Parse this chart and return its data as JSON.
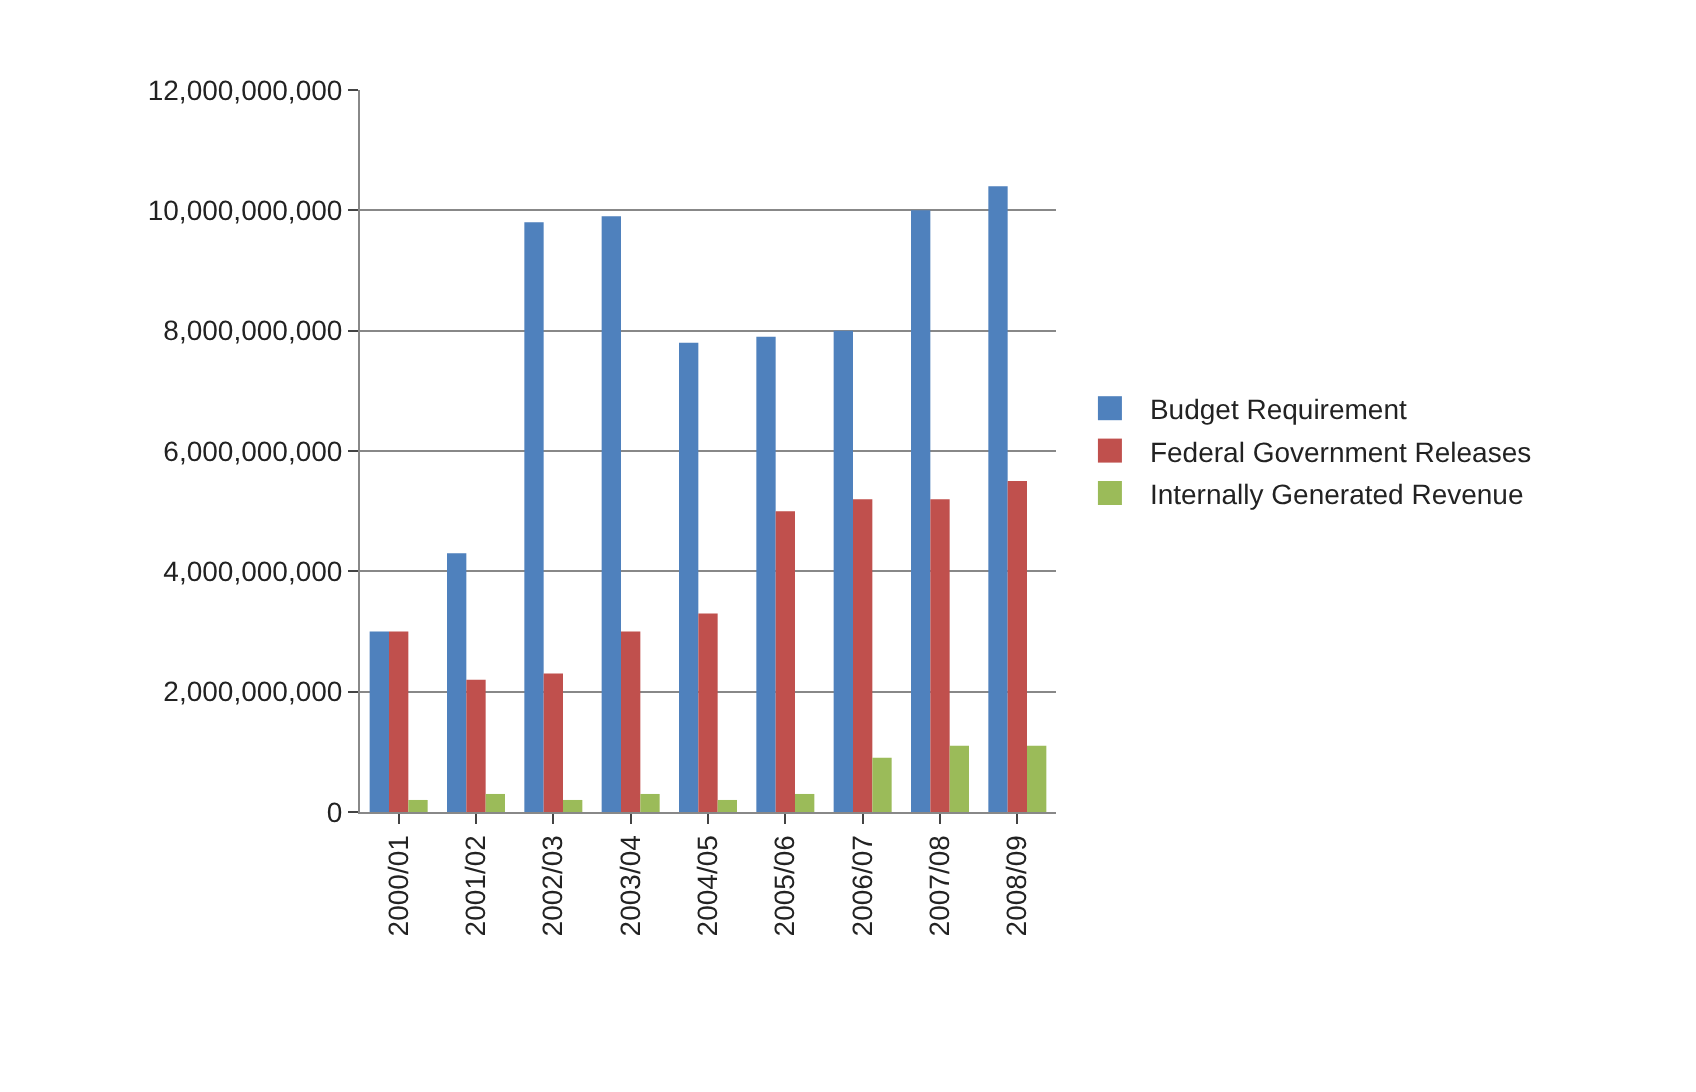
{
  "chart_data": {
    "type": "bar",
    "categories": [
      "2000/01",
      "2001/02",
      "2002/03",
      "2003/04",
      "2004/05",
      "2005/06",
      "2006/07",
      "2007/08",
      "2008/09"
    ],
    "series": [
      {
        "name": "Budget Requirement",
        "color": "#4f81bd",
        "values": [
          3000000000,
          4300000000,
          9800000000,
          9900000000,
          7800000000,
          7900000000,
          8000000000,
          10000000000,
          10400000000
        ]
      },
      {
        "name": "Federal Government Releases",
        "color": "#c0504d",
        "values": [
          3000000000,
          2200000000,
          2300000000,
          3000000000,
          3300000000,
          5000000000,
          5200000000,
          5200000000,
          5500000000
        ]
      },
      {
        "name": "Internally Generated Revenue",
        "color": "#9bbb59",
        "values": [
          200000000,
          300000000,
          200000000,
          300000000,
          200000000,
          300000000,
          900000000,
          1100000000,
          1100000000
        ]
      }
    ],
    "ylim": [
      0,
      12000000000
    ],
    "yticks": [
      {
        "value": 0,
        "label": "0"
      },
      {
        "value": 2000000000,
        "label": "2,000,000,000"
      },
      {
        "value": 4000000000,
        "label": "4,000,000,000"
      },
      {
        "value": 6000000000,
        "label": "6,000,000,000"
      },
      {
        "value": 8000000000,
        "label": "8,000,000,000"
      },
      {
        "value": 10000000000,
        "label": "10,000,000,000"
      },
      {
        "value": 12000000000,
        "label": "12,000,000,000"
      }
    ],
    "grid": "y",
    "legend": "right"
  }
}
